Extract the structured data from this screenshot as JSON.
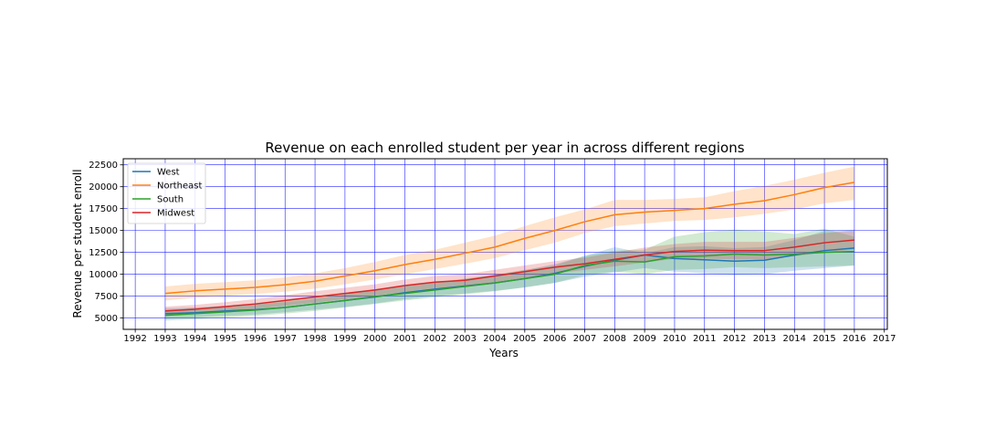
{
  "chart_data": {
    "type": "line",
    "title": "Revenue on each enrolled student per year in across different regions",
    "xlabel": "Years",
    "ylabel": "Revenue per student enroll",
    "xlim": [
      1991.6,
      2017.1
    ],
    "ylim": [
      3700,
      23200
    ],
    "x_ticks": [
      1992,
      1993,
      1994,
      1995,
      1996,
      1997,
      1998,
      1999,
      2000,
      2001,
      2002,
      2003,
      2004,
      2005,
      2006,
      2007,
      2008,
      2009,
      2010,
      2011,
      2012,
      2013,
      2014,
      2015,
      2016,
      2017
    ],
    "y_ticks": [
      5000,
      7500,
      10000,
      12500,
      15000,
      17500,
      20000,
      22500
    ],
    "grid": true,
    "grid_color": "#0000ff",
    "legend_position": "top-left",
    "x": [
      1993,
      1994,
      1995,
      1996,
      1997,
      1998,
      1999,
      2000,
      2001,
      2002,
      2003,
      2004,
      2005,
      2006,
      2007,
      2008,
      2009,
      2010,
      2011,
      2012,
      2013,
      2014,
      2015,
      2016
    ],
    "series": [
      {
        "name": "West",
        "color": "#1f77b4",
        "values": [
          5500,
          5600,
          5800,
          5950,
          6200,
          6600,
          7000,
          7400,
          7900,
          8300,
          8650,
          9000,
          9500,
          10100,
          10900,
          11600,
          12200,
          11800,
          11650,
          11500,
          11600,
          12200,
          12700,
          13000
        ],
        "lower": [
          4900,
          5050,
          5250,
          5400,
          5650,
          5950,
          6250,
          6650,
          7150,
          7500,
          7800,
          8100,
          8500,
          9000,
          9700,
          10200,
          10700,
          10300,
          10100,
          9900,
          10000,
          10400,
          10700,
          11000
        ],
        "upper": [
          6100,
          6200,
          6400,
          6550,
          6800,
          7200,
          7700,
          8150,
          8650,
          9050,
          9450,
          9900,
          10450,
          11150,
          12100,
          13100,
          12400,
          13100,
          13200,
          13000,
          13100,
          13900,
          14950,
          15100
        ]
      },
      {
        "name": "Northeast",
        "color": "#ff7f0e",
        "values": [
          7800,
          8100,
          8300,
          8500,
          8800,
          9200,
          9800,
          10400,
          11100,
          11700,
          12400,
          13100,
          14100,
          15000,
          16000,
          16800,
          17100,
          17300,
          17500,
          18000,
          18400,
          19100,
          19900,
          20500
        ],
        "lower": [
          7000,
          7300,
          7550,
          7750,
          8000,
          8350,
          8850,
          9400,
          10000,
          10600,
          11200,
          11850,
          12750,
          13600,
          14700,
          15500,
          15800,
          16100,
          16200,
          16500,
          16900,
          17400,
          18100,
          18500
        ],
        "upper": [
          8600,
          8900,
          9100,
          9300,
          9650,
          10100,
          10700,
          11400,
          12200,
          12800,
          13600,
          14400,
          15500,
          16500,
          17400,
          18500,
          18500,
          18600,
          18800,
          19500,
          20100,
          20800,
          21600,
          22300
        ]
      },
      {
        "name": "South",
        "color": "#2ca02c",
        "values": [
          5300,
          5500,
          5700,
          5900,
          6200,
          6600,
          7000,
          7450,
          7800,
          8200,
          8600,
          9000,
          9500,
          10000,
          11000,
          11500,
          11400,
          12000,
          12100,
          12300,
          12200,
          12300,
          12500,
          12600
        ],
        "lower": [
          4700,
          4850,
          5050,
          5250,
          5500,
          5800,
          6200,
          6600,
          7000,
          7350,
          7700,
          8050,
          8500,
          9000,
          9900,
          10300,
          10000,
          10500,
          10600,
          10800,
          10700,
          10800,
          10900,
          11000
        ],
        "upper": [
          5900,
          6150,
          6350,
          6550,
          6900,
          7400,
          7800,
          8300,
          8650,
          9050,
          9500,
          9950,
          10500,
          11000,
          12100,
          12700,
          12800,
          14300,
          14800,
          15100,
          14900,
          14600,
          15200,
          14300
        ]
      },
      {
        "name": "Midwest",
        "color": "#d62728",
        "values": [
          5800,
          6000,
          6300,
          6600,
          7000,
          7400,
          7800,
          8200,
          8700,
          9100,
          9300,
          9800,
          10300,
          10800,
          11200,
          11700,
          12200,
          12600,
          12750,
          12700,
          12700,
          13100,
          13600,
          13900
        ],
        "lower": [
          5300,
          5500,
          5800,
          6050,
          6400,
          6750,
          7150,
          7550,
          8000,
          8400,
          8600,
          9100,
          9600,
          10100,
          10500,
          10900,
          11350,
          11750,
          11800,
          11700,
          11700,
          12050,
          12500,
          12800
        ],
        "upper": [
          6300,
          6500,
          6800,
          7150,
          7600,
          8050,
          8450,
          8850,
          9400,
          9800,
          10000,
          10500,
          11000,
          11500,
          11900,
          12500,
          13050,
          13450,
          13700,
          13700,
          13700,
          14150,
          14700,
          15000
        ]
      }
    ]
  }
}
